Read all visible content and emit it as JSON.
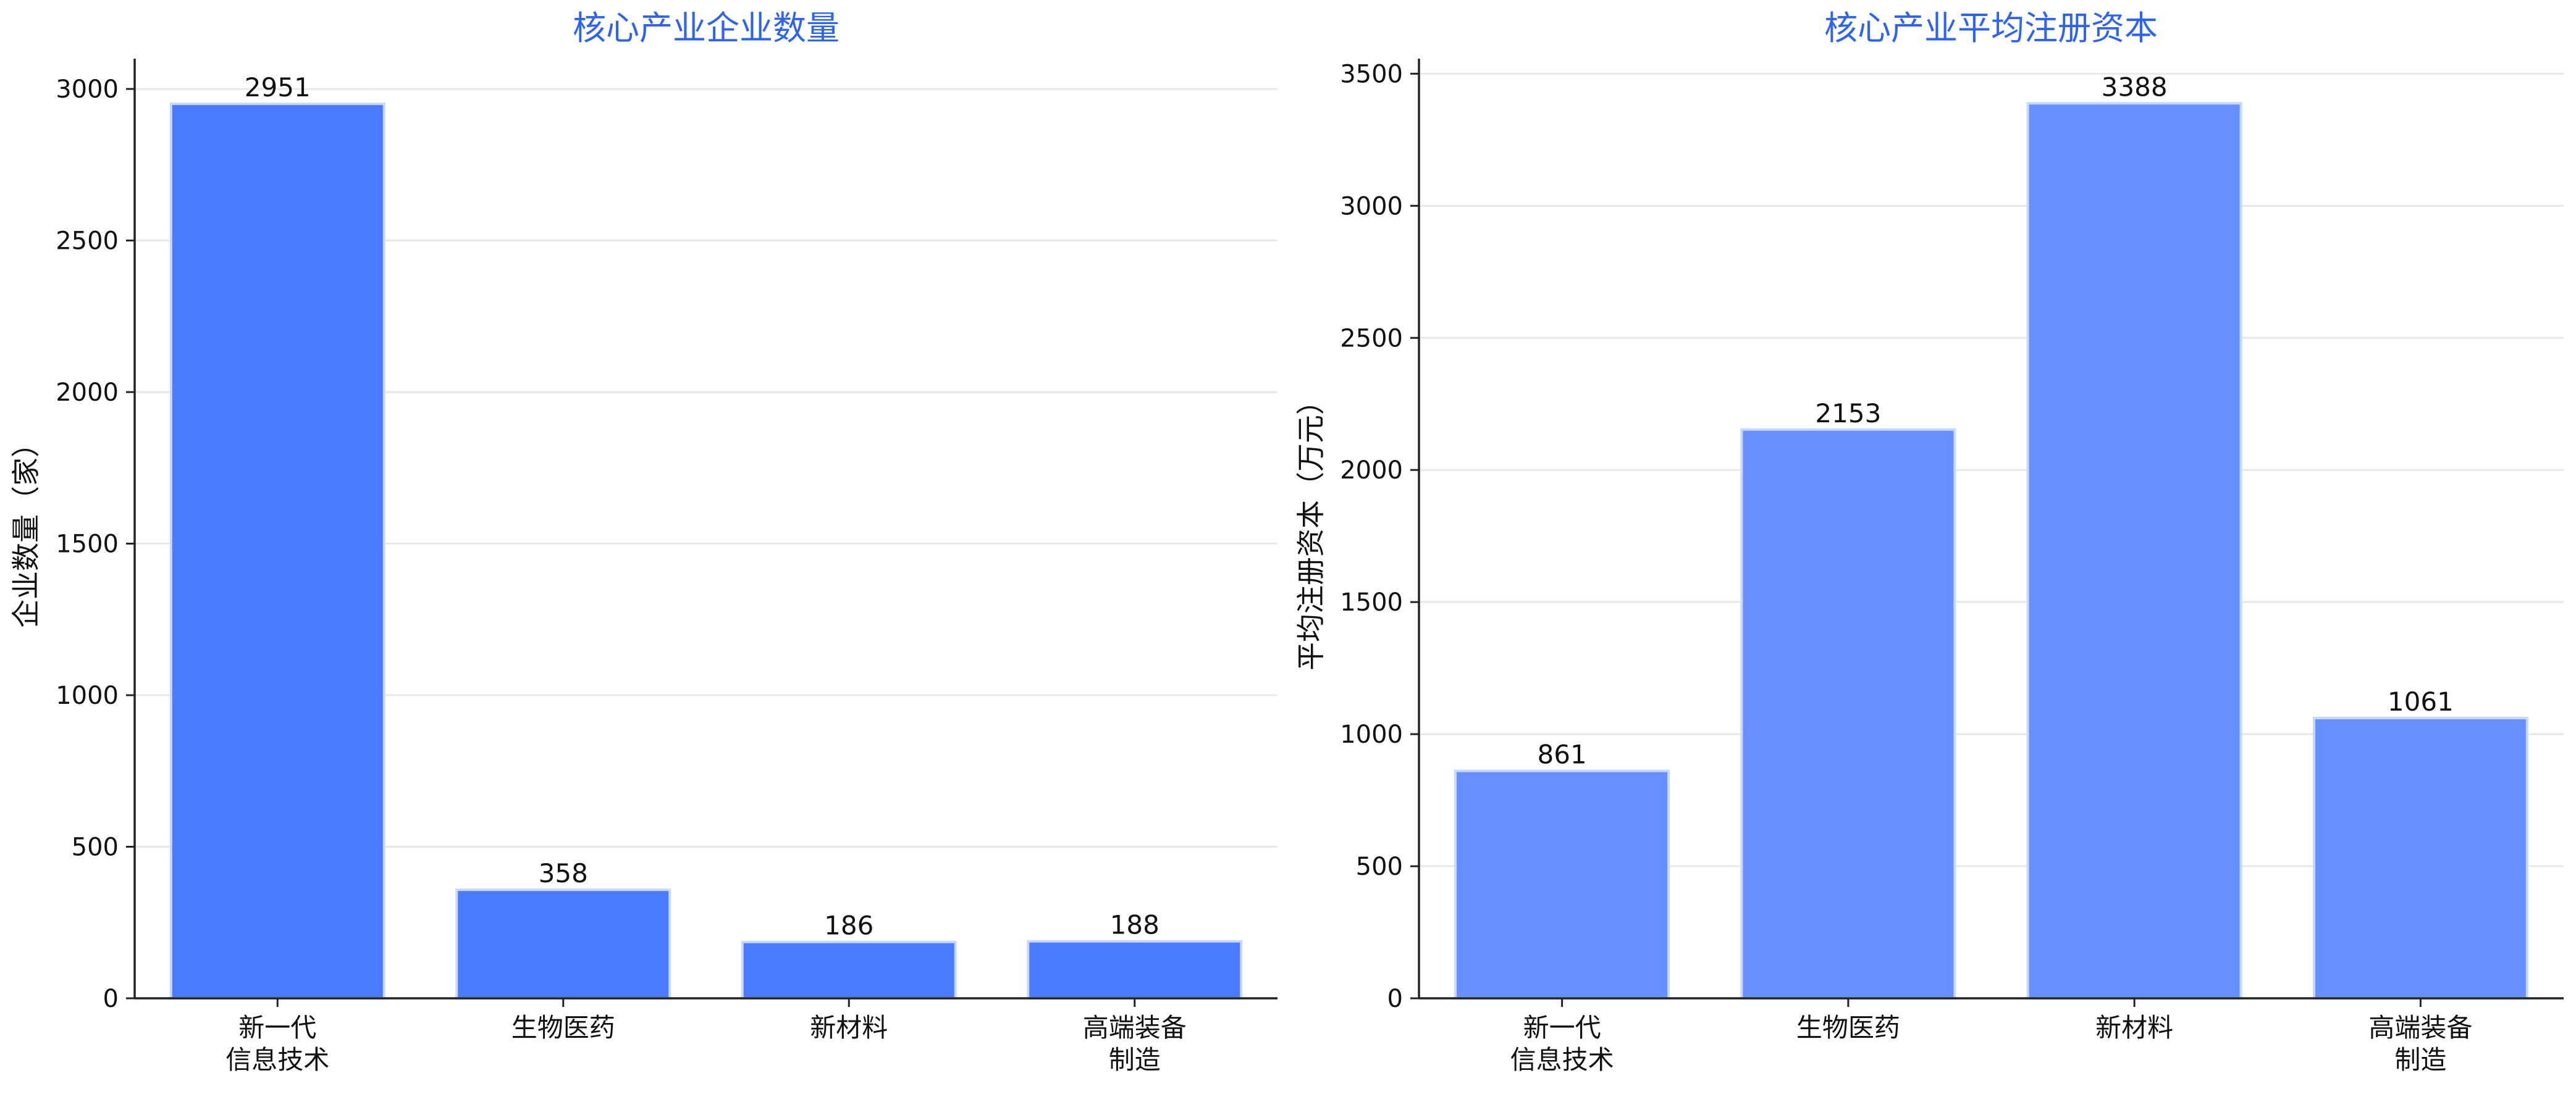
{
  "chart_data": [
    {
      "type": "bar",
      "title": "核心产业企业数量",
      "xlabel": "",
      "ylabel": "企业数量（家）",
      "categories": [
        [
          "新一代",
          "信息技术"
        ],
        [
          "生物医药"
        ],
        [
          "新材料"
        ],
        [
          "高端装备",
          "制造"
        ]
      ],
      "values": [
        2951,
        358,
        186,
        188
      ],
      "ylim": [
        0,
        3100
      ],
      "yticks": [
        0,
        500,
        1000,
        1500,
        2000,
        2500,
        3000
      ],
      "grid": "horizontal",
      "bar_color": "#4a7aff",
      "title_color": "#2f63e8"
    },
    {
      "type": "bar",
      "title": "核心产业平均注册资本",
      "xlabel": "",
      "ylabel": "平均注册资本（万元）",
      "categories": [
        [
          "新一代",
          "信息技术"
        ],
        [
          "生物医药"
        ],
        [
          "新材料"
        ],
        [
          "高端装备",
          "制造"
        ]
      ],
      "values": [
        861,
        2153,
        3388,
        1061
      ],
      "ylim": [
        0,
        3557
      ],
      "yticks": [
        0,
        500,
        1000,
        1500,
        2000,
        2500,
        3000,
        3500
      ],
      "grid": "horizontal",
      "bar_color": "#6690ff",
      "title_color": "#2f63e8"
    }
  ]
}
